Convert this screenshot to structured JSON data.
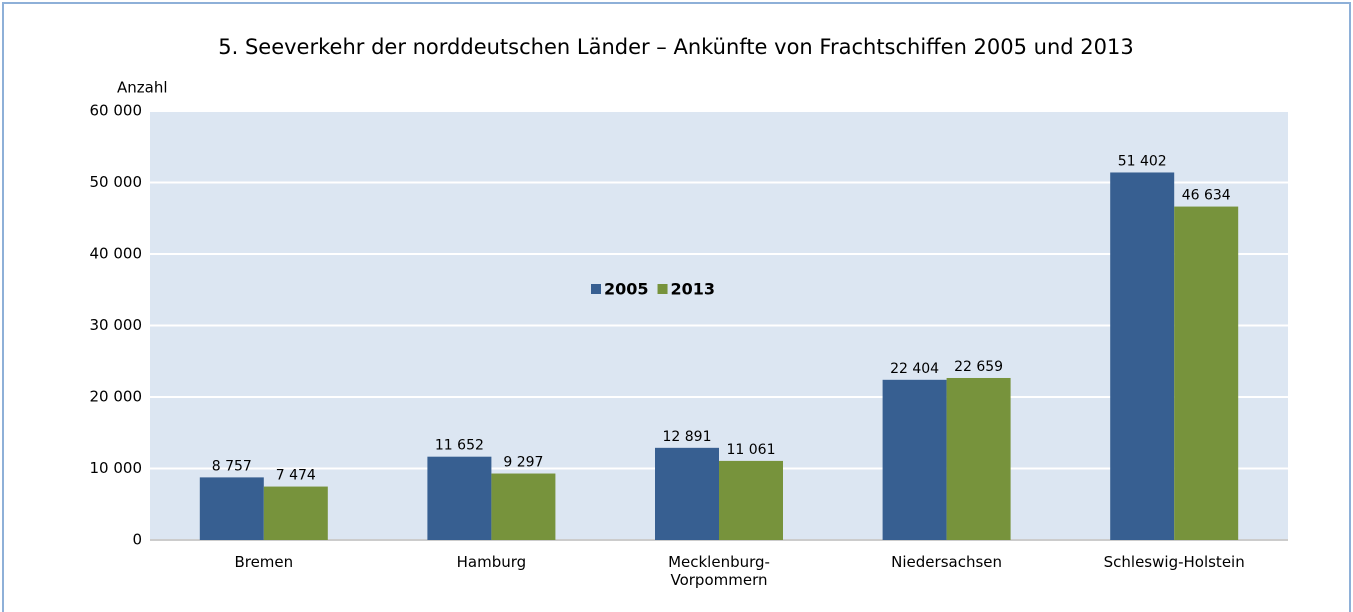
{
  "chart_data": {
    "type": "bar",
    "title": "5. Seeverkehr der norddeutschen Länder – Ankünfte von Frachtschiffen 2005 und 2013",
    "y_label": "Anzahl",
    "categories": [
      "Bremen",
      "Hamburg",
      "Mecklenburg-\nVorpommern",
      "Niedersachsen",
      "Schleswig-Holstein"
    ],
    "series": [
      {
        "name": "2005",
        "color": "#375f91",
        "values": [
          8757,
          11652,
          12891,
          22404,
          51402
        ],
        "value_labels": [
          "8 757",
          "11 652",
          "12 891",
          "22 404",
          "51 402"
        ]
      },
      {
        "name": "2013",
        "color": "#77933c",
        "values": [
          7474,
          9297,
          11061,
          22659,
          46634
        ],
        "value_labels": [
          "7 474",
          "9 297",
          "11 061",
          "22 659",
          "46 634"
        ]
      }
    ],
    "ylim": [
      0,
      60000
    ],
    "yticks": [
      0,
      {
        "value": 10000,
        "label": "10 000"
      },
      {
        "value": 20000,
        "label": "20 000"
      },
      {
        "value": 30000,
        "label": "30 000"
      },
      {
        "value": 40000,
        "label": "40 000"
      },
      {
        "value": 50000,
        "label": "50 000"
      },
      {
        "value": 60000,
        "label": "60 000"
      }
    ],
    "grid": true
  }
}
